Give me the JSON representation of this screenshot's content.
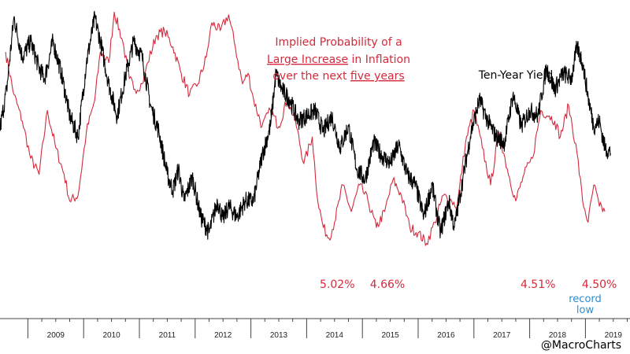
{
  "chart_data": {
    "type": "line",
    "title": "Implied Probability of a Large Increase in Inflation over the next five years",
    "title_lines": [
      [
        "Implied Probability of a",
        ""
      ],
      [
        "Large Increase",
        " in Inflation"
      ],
      [
        "over the next ",
        "five years"
      ]
    ],
    "xlabel": "",
    "ylabel": "",
    "grid": false,
    "x_ticks": [
      "2009",
      "2010",
      "2011",
      "2012",
      "2013",
      "2014",
      "2015",
      "2016",
      "2017",
      "2018",
      "2019"
    ],
    "x_range": [
      2008.5,
      2019.8
    ],
    "y_range": [
      0,
      100
    ],
    "series": [
      {
        "name": "Ten-Year Yield",
        "color": "#000000",
        "label": "Ten-Year Yield",
        "x": [
          2008.5,
          2008.62,
          2008.75,
          2008.9,
          2009.05,
          2009.2,
          2009.3,
          2009.45,
          2009.6,
          2009.75,
          2009.9,
          2010.05,
          2010.2,
          2010.3,
          2010.45,
          2010.6,
          2010.75,
          2010.9,
          2011.05,
          2011.2,
          2011.35,
          2011.5,
          2011.6,
          2011.7,
          2011.8,
          2011.95,
          2012.1,
          2012.25,
          2012.4,
          2012.5,
          2012.6,
          2012.75,
          2012.9,
          2013.05,
          2013.2,
          2013.35,
          2013.45,
          2013.55,
          2013.7,
          2013.85,
          2014.0,
          2014.15,
          2014.3,
          2014.45,
          2014.6,
          2014.75,
          2014.9,
          2015.05,
          2015.2,
          2015.35,
          2015.5,
          2015.65,
          2015.8,
          2015.95,
          2016.1,
          2016.25,
          2016.4,
          2016.55,
          2016.65,
          2016.8,
          2016.95,
          2017.1,
          2017.25,
          2017.4,
          2017.55,
          2017.7,
          2017.85,
          2018.0,
          2018.15,
          2018.3,
          2018.45,
          2018.6,
          2018.75,
          2018.85,
          2018.95,
          2019.05,
          2019.15,
          2019.25,
          2019.35,
          2019.45
        ],
        "values": [
          55,
          70,
          97,
          82,
          88,
          78,
          74,
          88,
          76,
          60,
          52,
          80,
          97,
          88,
          72,
          60,
          75,
          88,
          82,
          64,
          54,
          38,
          32,
          40,
          28,
          37,
          22,
          16,
          28,
          21,
          26,
          22,
          28,
          28,
          45,
          56,
          76,
          70,
          66,
          58,
          60,
          62,
          54,
          60,
          48,
          56,
          40,
          36,
          50,
          45,
          42,
          49,
          38,
          34,
          22,
          34,
          16,
          28,
          18,
          36,
          54,
          66,
          58,
          52,
          50,
          68,
          56,
          62,
          60,
          78,
          70,
          76,
          74,
          86,
          80,
          67,
          56,
          58,
          48,
          46
        ]
      },
      {
        "name": "Implied Probability of a Large Increase in Inflation",
        "color": "#d42a3c",
        "x": [
          2008.6,
          2008.75,
          2008.9,
          2009.05,
          2009.2,
          2009.35,
          2009.5,
          2009.65,
          2009.75,
          2009.9,
          2010.05,
          2010.2,
          2010.3,
          2010.45,
          2010.55,
          2010.7,
          2010.82,
          2010.92,
          2011.05,
          2011.15,
          2011.3,
          2011.45,
          2011.6,
          2011.75,
          2011.9,
          2012.05,
          2012.2,
          2012.3,
          2012.45,
          2012.6,
          2012.7,
          2012.85,
          2012.95,
          2013.05,
          2013.2,
          2013.35,
          2013.5,
          2013.65,
          2013.8,
          2013.95,
          2014.1,
          2014.2,
          2014.3,
          2014.4,
          2014.5,
          2014.65,
          2014.8,
          2014.95,
          2015.1,
          2015.25,
          2015.4,
          2015.55,
          2015.7,
          2015.85,
          2016.0,
          2016.15,
          2016.3,
          2016.45,
          2016.6,
          2016.7,
          2016.85,
          2017.0,
          2017.15,
          2017.3,
          2017.45,
          2017.6,
          2017.75,
          2017.9,
          2018.05,
          2018.2,
          2018.35,
          2018.45,
          2018.55,
          2018.7,
          2018.85,
          2018.95,
          2019.05,
          2019.15,
          2019.25,
          2019.35
        ],
        "values": [
          84,
          68,
          58,
          44,
          38,
          62,
          48,
          38,
          28,
          30,
          54,
          66,
          84,
          80,
          99,
          88,
          74,
          70,
          72,
          80,
          90,
          92,
          86,
          76,
          68,
          72,
          82,
          95,
          92,
          98,
          88,
          72,
          76,
          66,
          56,
          62,
          56,
          66,
          58,
          42,
          52,
          28,
          18,
          14,
          20,
          34,
          24,
          34,
          28,
          18,
          24,
          36,
          30,
          18,
          16,
          12,
          20,
          30,
          28,
          26,
          50,
          62,
          48,
          34,
          54,
          40,
          28,
          38,
          44,
          62,
          60,
          58,
          52,
          64,
          46,
          28,
          20,
          34,
          26,
          24
        ]
      }
    ],
    "annotations": [
      {
        "text": "5.02%",
        "x": 2014.55,
        "y": 9.5
      },
      {
        "text": "4.66%",
        "x": 2015.45,
        "y": 9.5
      },
      {
        "text": "4.51%",
        "x": 2018.15,
        "y": 9.5
      },
      {
        "text": "4.50%",
        "x": 2019.25,
        "y": 9.5
      }
    ],
    "record_note": [
      "record",
      "low"
    ],
    "ten_year_label": "Ten-Year Yield",
    "watermark": "@MacroCharts",
    "colors": {
      "red": "#d42a3c",
      "black": "#000000",
      "blue": "#2a8fd0",
      "axis": "#444444"
    }
  }
}
